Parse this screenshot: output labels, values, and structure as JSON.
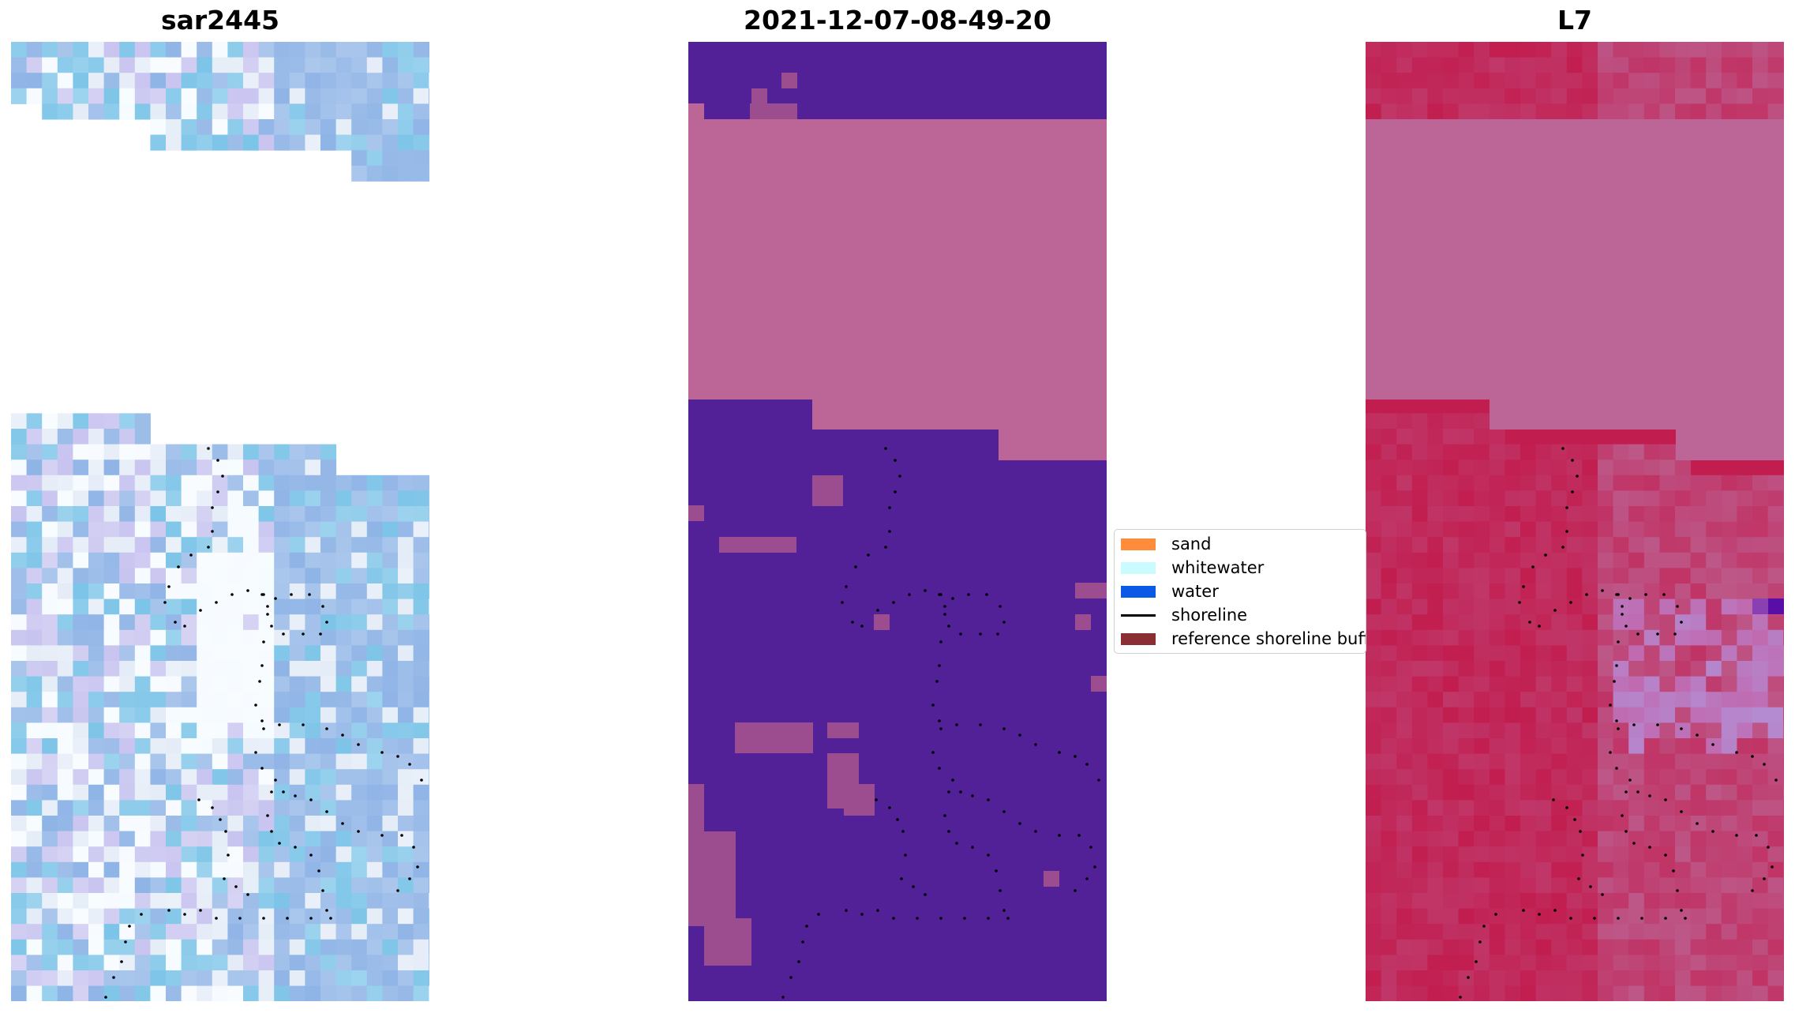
{
  "panels": [
    {
      "title": "sar2445"
    },
    {
      "title": "2021-12-07-08-49-20"
    },
    {
      "title": "L7"
    }
  ],
  "legend": {
    "items": [
      {
        "label": "sand",
        "color": "#ff8c3a",
        "kind": "patch"
      },
      {
        "label": "whitewater",
        "color": "#c9fbff",
        "kind": "patch"
      },
      {
        "label": "water",
        "color": "#0a5ae6",
        "kind": "patch"
      },
      {
        "label": "shoreline",
        "color": "#000000",
        "kind": "line"
      },
      {
        "label": "reference shoreline buff",
        "color": "#8b2e33",
        "kind": "patch"
      }
    ]
  },
  "colors": {
    "nodata_pink": "#bb6696",
    "class_purple": "#522197",
    "class_mauve": "#9c4d8f",
    "l7_crimson": "#c21d4f",
    "l7_dark": "#5a0ea8",
    "sar_blue": "#8fb4e6",
    "sar_light": "#e4ecf7",
    "sar_cyan": "#7cc4e8",
    "sar_lavender": "#c8c4f0",
    "sar_white": "#f6fbff"
  }
}
